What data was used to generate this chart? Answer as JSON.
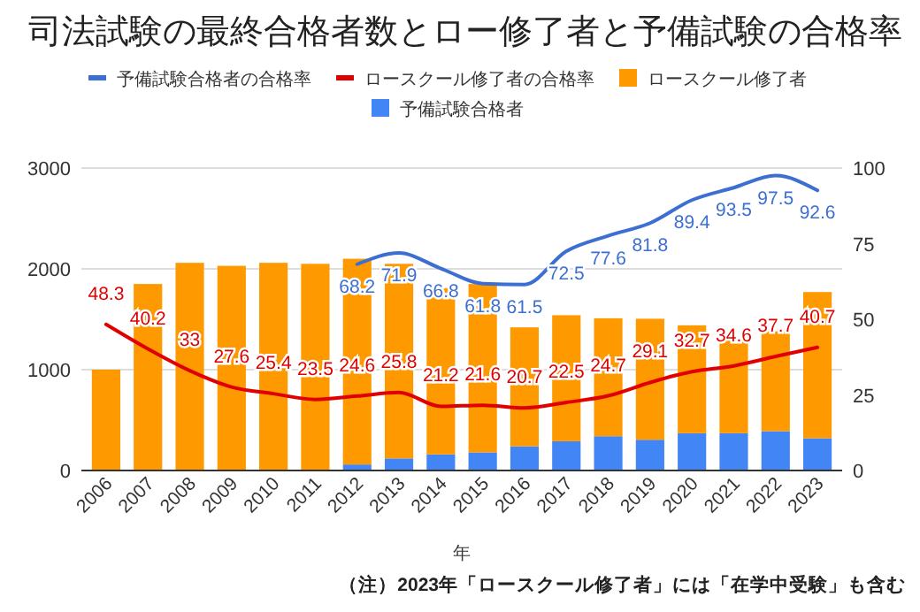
{
  "chart_data": {
    "type": "bar",
    "title": "司法試験の最終合格者数とロー修了者と予備試験の合格率",
    "xlabel": "年",
    "stacked": true,
    "legend": "top",
    "grid": "y",
    "categories": [
      "2006",
      "2007",
      "2008",
      "2009",
      "2010",
      "2011",
      "2012",
      "2013",
      "2014",
      "2015",
      "2016",
      "2017",
      "2018",
      "2019",
      "2020",
      "2021",
      "2022",
      "2023"
    ],
    "ylim": [
      0,
      3000
    ],
    "yticks": [
      0,
      1000,
      2000,
      3000
    ],
    "y2lim": [
      0,
      100
    ],
    "y2ticks": [
      0,
      25,
      50,
      75,
      100
    ],
    "series": [
      {
        "name": "予備試験合格者の合格率",
        "type": "line",
        "axis": "y2",
        "color": "#3c6fd1",
        "values": [
          null,
          null,
          null,
          null,
          null,
          null,
          68.2,
          71.9,
          66.8,
          61.8,
          61.5,
          72.5,
          77.6,
          81.8,
          89.4,
          93.5,
          97.5,
          92.6
        ],
        "value_labels": [
          null,
          null,
          null,
          null,
          null,
          null,
          "68.2",
          "71.9",
          "66.8",
          "61.8",
          "61.5",
          "72.5",
          "77.6",
          "81.8",
          "89.4",
          "93.5",
          "97.5",
          "92.6"
        ]
      },
      {
        "name": "ロースクール修了者の合格率",
        "type": "line",
        "axis": "y2",
        "color": "#e00000",
        "values": [
          48.3,
          40.2,
          33,
          27.6,
          25.4,
          23.5,
          24.6,
          25.8,
          21.2,
          21.6,
          20.7,
          22.5,
          24.7,
          29.1,
          32.7,
          34.6,
          37.7,
          40.7
        ],
        "value_labels": [
          "48.3",
          "40.2",
          "33",
          "27.6",
          "25.4",
          "23.5",
          "24.6",
          "25.8",
          "21.2",
          "21.6",
          "20.7",
          "22.5",
          "24.7",
          "29.1",
          "32.7",
          "34.6",
          "37.7",
          "40.7"
        ]
      },
      {
        "name": "予備試験合格者",
        "type": "bar",
        "color": "#4285f4",
        "values": [
          0,
          0,
          0,
          0,
          0,
          0,
          60,
          120,
          160,
          180,
          240,
          290,
          340,
          305,
          370,
          370,
          390,
          320
        ]
      },
      {
        "name": "ロースクール修了者",
        "type": "bar",
        "color": "#ff9900",
        "values": [
          1000,
          1850,
          2060,
          2030,
          2060,
          2050,
          2040,
          1930,
          1650,
          1670,
          1180,
          1250,
          1170,
          1200,
          1070,
          920,
          990,
          1450
        ]
      }
    ],
    "annotations": [
      "（注）2023年「ロースクール修了者」には「在学中受験」も含む"
    ]
  }
}
